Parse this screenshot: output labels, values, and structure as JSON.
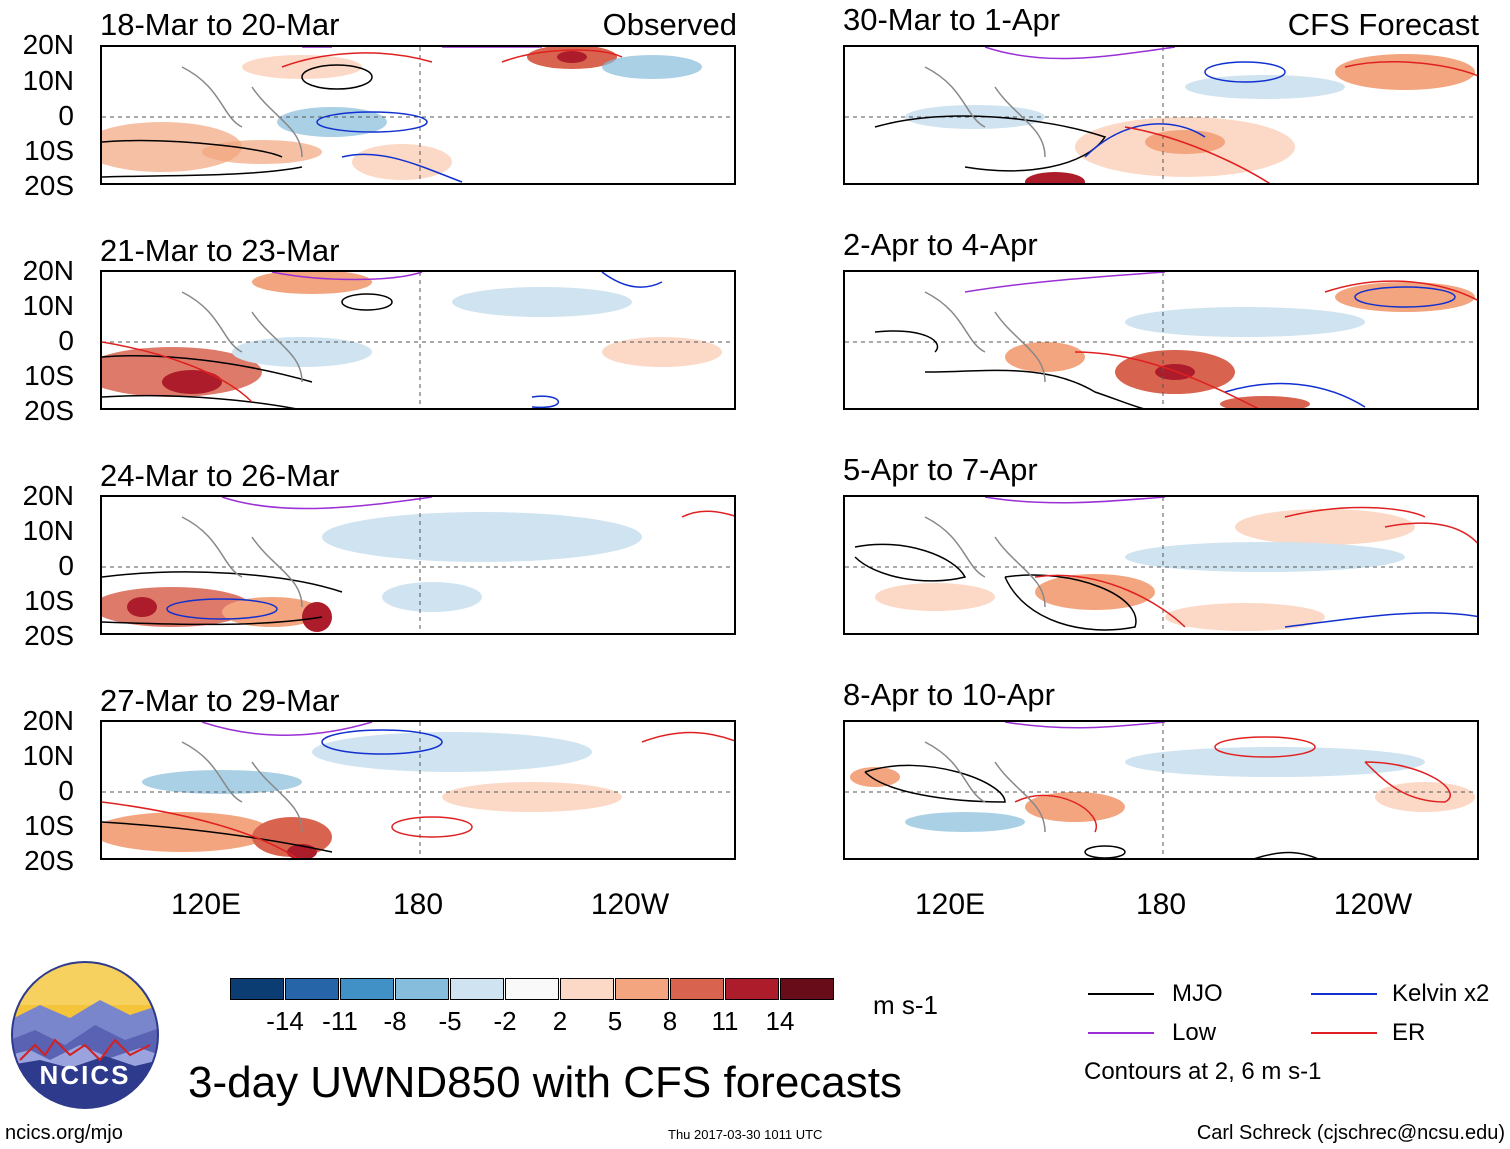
{
  "header": {
    "observed_label": "Observed",
    "forecast_label": "CFS Forecast"
  },
  "lat_labels": [
    "20N",
    "10N",
    "0",
    "10S",
    "20S"
  ],
  "lon_labels": [
    "120E",
    "180",
    "120W"
  ],
  "panels_left": [
    {
      "period": "18-Mar to 20-Mar"
    },
    {
      "period": "21-Mar to 23-Mar"
    },
    {
      "period": "24-Mar to 26-Mar"
    },
    {
      "period": "27-Mar to 29-Mar"
    }
  ],
  "panels_right": [
    {
      "period": "30-Mar to 1-Apr"
    },
    {
      "period": "2-Apr to 4-Apr"
    },
    {
      "period": "5-Apr to 7-Apr"
    },
    {
      "period": "8-Apr to 10-Apr"
    }
  ],
  "colorbar": {
    "colors": [
      "#0b3d73",
      "#2565a8",
      "#4191c6",
      "#86bcdc",
      "#cfe3f1",
      "#f9f9f9",
      "#fcd9c6",
      "#f2a57e",
      "#d8634f",
      "#ad1c2a",
      "#680c1a"
    ],
    "ticks": [
      "-14",
      "-11",
      "-8",
      "-5",
      "-2",
      "2",
      "5",
      "8",
      "11",
      "14"
    ],
    "units": "m s-1"
  },
  "legend": {
    "items": [
      {
        "label": "MJO",
        "color": "#000000"
      },
      {
        "label": "Kelvin x2",
        "color": "#1030d0"
      },
      {
        "label": "Low",
        "color": "#9a2fd6"
      },
      {
        "label": "ER",
        "color": "#e02020"
      }
    ],
    "note": "Contours at 2, 6 m s-1"
  },
  "main_title": "3-day UWND850 with CFS forecasts",
  "logo_text": "NCICS",
  "footer": {
    "url": "ncics.org/mjo",
    "timestamp": "Thu 2017-03-30 1011 UTC",
    "credit": "Carl Schreck (cjschrec@ncsu.edu)"
  },
  "icons": {
    "logo": "ncics-mountain-logo-icon"
  }
}
